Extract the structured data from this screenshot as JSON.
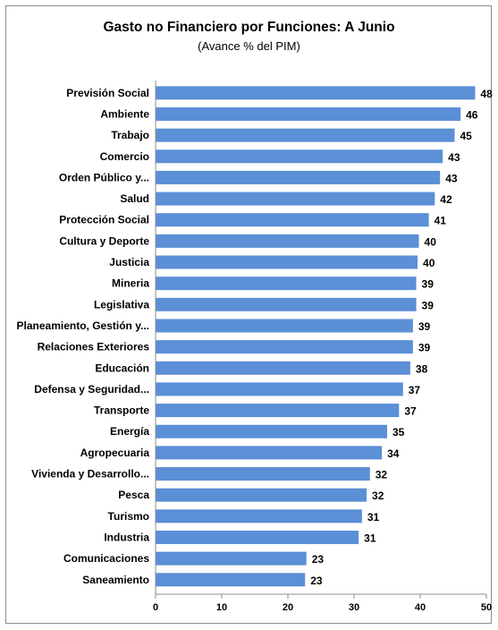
{
  "chart_data": {
    "type": "bar",
    "orientation": "horizontal",
    "title": "Gasto no Financiero por Funciones: A  Junio",
    "subtitle": "(Avance % del PIM)",
    "categories": [
      "Previsión Social",
      "Ambiente",
      "Trabajo",
      "Comercio",
      "Orden Público y...",
      "Salud",
      "Protección Social",
      "Cultura y Deporte",
      "Justicia",
      "Mineria",
      "Legislativa",
      "Planeamiento, Gestión y...",
      "Relaciones Exteriores",
      "Educación",
      "Defensa y Seguridad...",
      "Transporte",
      "Energía",
      "Agropecuaria",
      "Vivienda y Desarrollo...",
      "Pesca",
      "Turismo",
      "Industria",
      "Comunicaciones",
      "Saneamiento"
    ],
    "values": [
      48,
      46,
      45,
      43,
      43,
      42,
      41,
      40,
      40,
      39,
      39,
      39,
      39,
      38,
      37,
      37,
      35,
      34,
      32,
      32,
      31,
      31,
      23,
      23
    ],
    "bar_values": [
      48.3,
      46.1,
      45.2,
      43.4,
      43.0,
      42.2,
      41.3,
      39.8,
      39.6,
      39.4,
      39.4,
      38.9,
      38.9,
      38.5,
      37.4,
      36.8,
      35.0,
      34.2,
      32.4,
      31.9,
      31.2,
      30.7,
      22.8,
      22.6
    ],
    "xlim": [
      0,
      50
    ],
    "xticks": [
      "0",
      "10",
      "20",
      "30",
      "40",
      "50"
    ],
    "grid": false,
    "legend": "none",
    "bar_color": "#5b8fd6"
  }
}
